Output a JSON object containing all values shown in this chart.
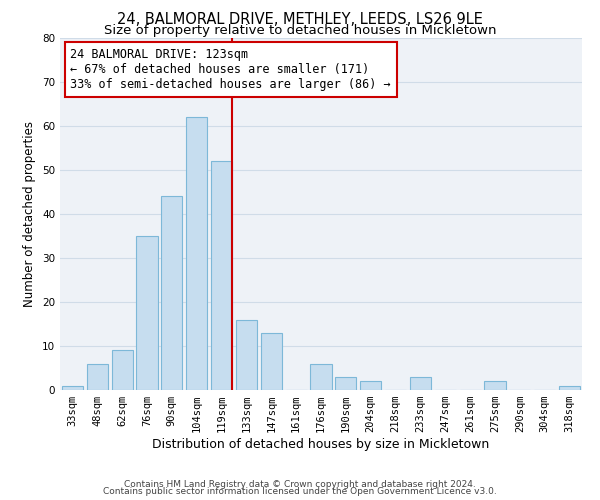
{
  "title": "24, BALMORAL DRIVE, METHLEY, LEEDS, LS26 9LE",
  "subtitle": "Size of property relative to detached houses in Mickletown",
  "xlabel": "Distribution of detached houses by size in Mickletown",
  "ylabel": "Number of detached properties",
  "bar_labels": [
    "33sqm",
    "48sqm",
    "62sqm",
    "76sqm",
    "90sqm",
    "104sqm",
    "119sqm",
    "133sqm",
    "147sqm",
    "161sqm",
    "176sqm",
    "190sqm",
    "204sqm",
    "218sqm",
    "233sqm",
    "247sqm",
    "261sqm",
    "275sqm",
    "290sqm",
    "304sqm",
    "318sqm"
  ],
  "bar_values": [
    1,
    6,
    9,
    35,
    44,
    62,
    52,
    16,
    13,
    0,
    6,
    3,
    2,
    0,
    3,
    0,
    0,
    2,
    0,
    0,
    1
  ],
  "bar_color": "#c6ddef",
  "bar_edgecolor": "#7db8d8",
  "bar_linewidth": 0.8,
  "grid_color": "#d0dce8",
  "bg_color": "#eef2f7",
  "vline_x_index": 6,
  "vline_color": "#cc0000",
  "annotation_line1": "24 BALMORAL DRIVE: 123sqm",
  "annotation_line2": "← 67% of detached houses are smaller (171)",
  "annotation_line3": "33% of semi-detached houses are larger (86) →",
  "annotation_box_color": "#cc0000",
  "ylim": [
    0,
    80
  ],
  "yticks": [
    0,
    10,
    20,
    30,
    40,
    50,
    60,
    70,
    80
  ],
  "footnote1": "Contains HM Land Registry data © Crown copyright and database right 2024.",
  "footnote2": "Contains public sector information licensed under the Open Government Licence v3.0.",
  "title_fontsize": 10.5,
  "subtitle_fontsize": 9.5,
  "xlabel_fontsize": 9,
  "ylabel_fontsize": 8.5,
  "tick_fontsize": 7.5,
  "annotation_fontsize": 8.5,
  "footnote_fontsize": 6.5
}
